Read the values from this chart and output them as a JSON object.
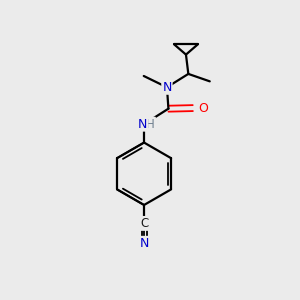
{
  "bg_color": "#ebebeb",
  "bond_color": "#000000",
  "atom_colors": {
    "N": "#0000cc",
    "O": "#ff0000",
    "C_label": "#1a1a1a",
    "NH_color": "#708090"
  },
  "figsize": [
    3.0,
    3.0
  ],
  "dpi": 100,
  "xlim": [
    0,
    10
  ],
  "ylim": [
    0,
    10
  ]
}
